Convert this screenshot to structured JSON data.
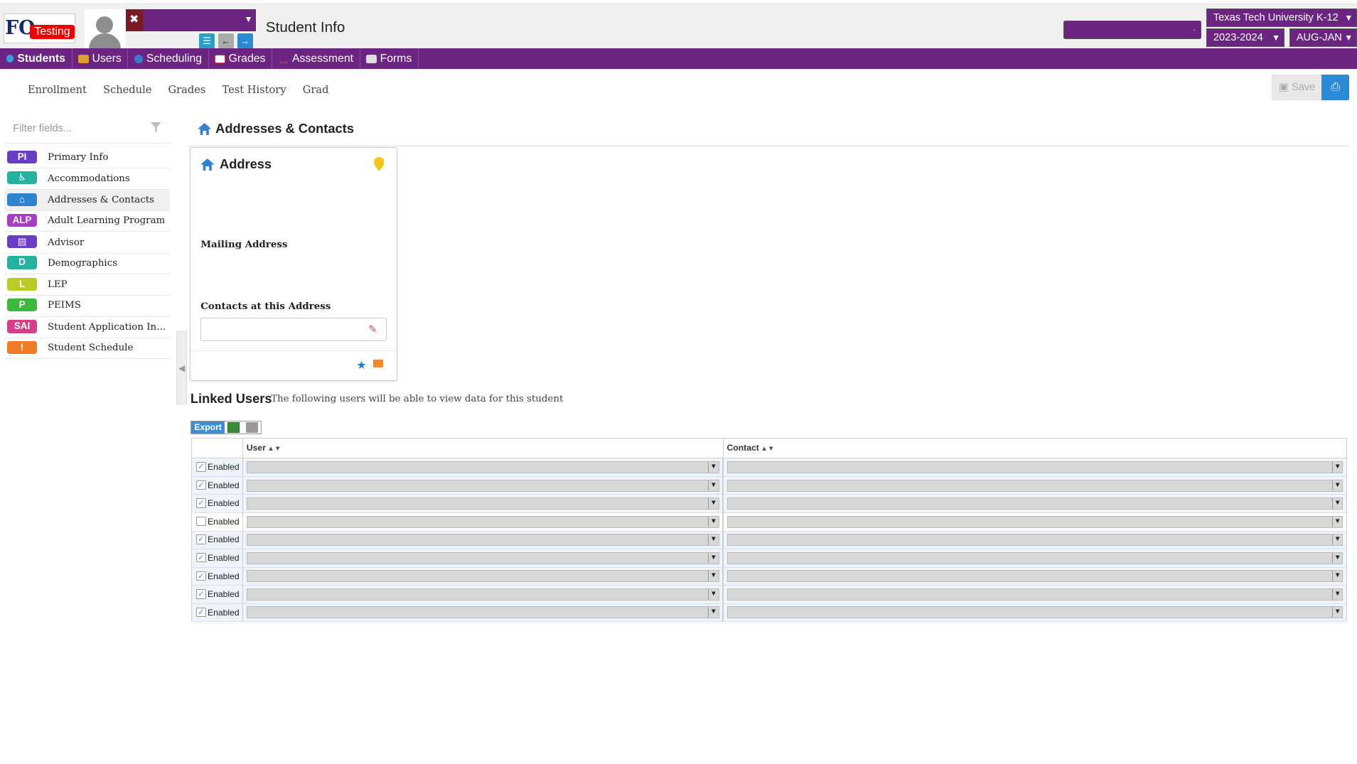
{
  "header": {
    "logo_text": "FO",
    "logo_badge": "Testing",
    "page_title": "Student Info",
    "district": "Texas Tech University K-12",
    "year": "2023-2024",
    "term": "AUG-JAN"
  },
  "nav": [
    {
      "label": "Students",
      "icon": "students-icon",
      "color": "#3aa0e0"
    },
    {
      "label": "Users",
      "icon": "users-icon",
      "color": "#e0a030"
    },
    {
      "label": "Scheduling",
      "icon": "scheduling-icon",
      "color": "#3a7ad0"
    },
    {
      "label": "Grades",
      "icon": "grades-icon",
      "color": "#d04040"
    },
    {
      "label": "Assessment",
      "icon": "assessment-icon",
      "color": "#d05050"
    },
    {
      "label": "Forms",
      "icon": "forms-icon",
      "color": "#cccccc"
    }
  ],
  "subtabs": [
    "Enrollment",
    "Schedule",
    "Grades",
    "Test History",
    "Grad"
  ],
  "toolbar": {
    "save_label": "Save"
  },
  "sidebar": {
    "filter_placeholder": "Filter fields...",
    "items": [
      {
        "badge": "PI",
        "label": "Primary Info",
        "color": "#6a3ec4"
      },
      {
        "badge": "♿",
        "label": "Accommodations",
        "color": "#26b2a0"
      },
      {
        "badge": "⌂",
        "label": "Addresses & Contacts",
        "color": "#2f84d0"
      },
      {
        "badge": "ALP",
        "label": "Adult Learning Program",
        "color": "#a63ec4"
      },
      {
        "badge": "▤",
        "label": "Advisor",
        "color": "#6a3ec4"
      },
      {
        "badge": "D",
        "label": "Demographics",
        "color": "#26b2a0"
      },
      {
        "badge": "L",
        "label": "LEP",
        "color": "#b8cc26"
      },
      {
        "badge": "P",
        "label": "PEIMS",
        "color": "#3cb83c"
      },
      {
        "badge": "SAI",
        "label": "Student Application Informa...",
        "color": "#d63e8c"
      },
      {
        "badge": "!",
        "label": "Student Schedule",
        "color": "#f07a26"
      }
    ]
  },
  "main": {
    "section_title": "Addresses & Contacts",
    "card": {
      "title": "Address",
      "mailing_label": "Mailing Address",
      "contacts_label": "Contacts at this Address"
    },
    "linked": {
      "title": "Linked Users",
      "subtitle": "The following users will be able to view data for this student",
      "export_label": "Export",
      "columns": [
        "User",
        "Contact"
      ],
      "rows": [
        {
          "enabled": true,
          "label": "Enabled"
        },
        {
          "enabled": true,
          "label": "Enabled"
        },
        {
          "enabled": true,
          "label": "Enabled"
        },
        {
          "enabled": false,
          "label": "Enabled"
        },
        {
          "enabled": true,
          "label": "Enabled"
        },
        {
          "enabled": true,
          "label": "Enabled"
        },
        {
          "enabled": true,
          "label": "Enabled"
        },
        {
          "enabled": true,
          "label": "Enabled"
        },
        {
          "enabled": true,
          "label": "Enabled"
        }
      ]
    }
  }
}
